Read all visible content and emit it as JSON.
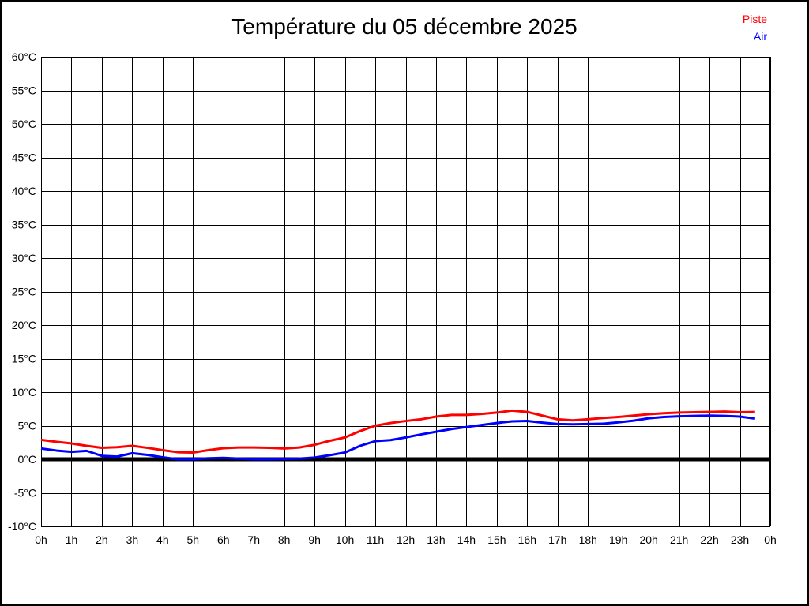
{
  "title": "Température du 05 décembre 2025",
  "legend": {
    "items": [
      {
        "label": "Piste",
        "color": "#ff0000"
      },
      {
        "label": "Air",
        "color": "#0000ff"
      }
    ]
  },
  "colors": {
    "grid": "#000000",
    "axis_text": "#000000",
    "zero_line": "#000000",
    "background": "#ffffff"
  },
  "chart_data": {
    "type": "line",
    "title": "Température du 05 décembre 2025",
    "xlabel": "",
    "ylabel": "",
    "grid": true,
    "legend_position": "top-right",
    "ylim": [
      -10,
      60
    ],
    "xlim_hours": [
      0,
      24
    ],
    "y_tick_step": 5,
    "y_tick_labels": [
      "60°C",
      "55°C",
      "50°C",
      "45°C",
      "40°C",
      "35°C",
      "30°C",
      "25°C",
      "20°C",
      "15°C",
      "10°C",
      "5°C",
      "0°C",
      "-5°C",
      "-10°C"
    ],
    "x_tick_labels": [
      "0h",
      "1h",
      "2h",
      "3h",
      "4h",
      "5h",
      "6h",
      "7h",
      "8h",
      "9h",
      "10h",
      "11h",
      "12h",
      "13h",
      "14h",
      "15h",
      "16h",
      "17h",
      "18h",
      "19h",
      "20h",
      "21h",
      "22h",
      "23h",
      "0h"
    ],
    "zero_line": {
      "value": 0,
      "thickness": 5
    },
    "x_hours": [
      0,
      0.5,
      1,
      1.5,
      2,
      2.5,
      3,
      3.5,
      4,
      4.5,
      5,
      5.5,
      6,
      6.5,
      7,
      7.5,
      8,
      8.5,
      9,
      9.5,
      10,
      10.5,
      11,
      11.5,
      12,
      12.5,
      13,
      13.5,
      14,
      14.5,
      15,
      15.5,
      16,
      16.5,
      17,
      17.5,
      18,
      18.5,
      19,
      19.5,
      20,
      20.5,
      21,
      21.5,
      22,
      22.5,
      23,
      23.5
    ],
    "series": [
      {
        "name": "Piste",
        "color": "#ff0000",
        "values": [
          2.9,
          2.6,
          2.35,
          2.0,
          1.7,
          1.8,
          2.0,
          1.7,
          1.35,
          1.05,
          1.0,
          1.35,
          1.65,
          1.75,
          1.75,
          1.7,
          1.6,
          1.75,
          2.15,
          2.75,
          3.25,
          4.2,
          5.0,
          5.4,
          5.7,
          5.95,
          6.35,
          6.6,
          6.6,
          6.75,
          6.95,
          7.25,
          7.05,
          6.5,
          5.95,
          5.8,
          5.95,
          6.15,
          6.3,
          6.5,
          6.7,
          6.85,
          6.95,
          7.0,
          7.05,
          7.1,
          7.0,
          7.05
        ]
      },
      {
        "name": "Air",
        "color": "#0000ff",
        "values": [
          1.6,
          1.3,
          1.1,
          1.25,
          0.5,
          0.4,
          0.9,
          0.65,
          0.3,
          0.0,
          0.0,
          0.15,
          0.2,
          0.1,
          0.0,
          0.0,
          0.05,
          0.1,
          0.25,
          0.6,
          1.0,
          2.0,
          2.7,
          2.85,
          3.25,
          3.7,
          4.1,
          4.5,
          4.8,
          5.1,
          5.4,
          5.65,
          5.7,
          5.45,
          5.25,
          5.2,
          5.25,
          5.3,
          5.5,
          5.75,
          6.1,
          6.3,
          6.4,
          6.45,
          6.5,
          6.45,
          6.35,
          6.05
        ]
      }
    ]
  }
}
